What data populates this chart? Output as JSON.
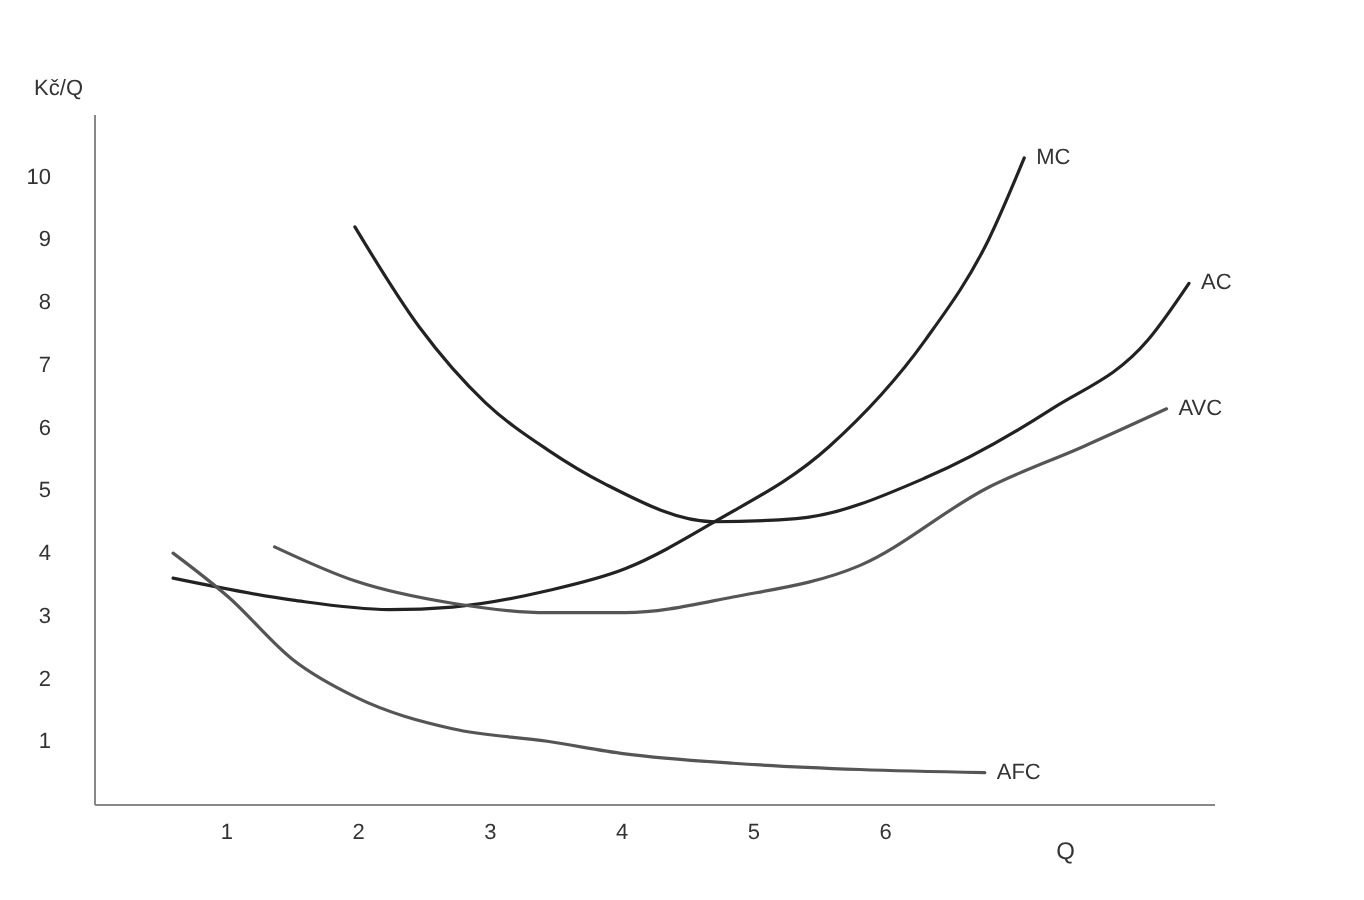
{
  "chart_data": {
    "type": "line",
    "xlabel": "Q",
    "ylabel": "Kč/Q",
    "xlim": [
      0,
      8.5
    ],
    "ylim": [
      0,
      11
    ],
    "xticks": [
      1,
      2,
      3,
      4,
      5,
      6
    ],
    "yticks": [
      1,
      2,
      3,
      4,
      5,
      6,
      7,
      8,
      9,
      10
    ],
    "series": [
      {
        "name": "MC",
        "color": "#222222",
        "x": [
          0.6,
          1.51,
          2.24,
          2.72,
          3.44,
          4.03,
          4.71,
          5.58,
          6.31,
          6.79,
          7.06
        ],
        "values": [
          3.6,
          3.25,
          3.1,
          3.14,
          3.4,
          3.75,
          4.5,
          5.7,
          7.4,
          9.0,
          10.3
        ]
      },
      {
        "name": "AC",
        "color": "#222222",
        "x": [
          1.98,
          2.47,
          2.97,
          3.44,
          3.88,
          4.71,
          5.33,
          6.31,
          7.27,
          8.0,
          8.31
        ],
        "values": [
          9.2,
          7.6,
          6.4,
          5.65,
          5.1,
          4.5,
          4.55,
          5.2,
          6.3,
          7.4,
          8.3
        ]
      },
      {
        "name": "AVC",
        "color": "#555555",
        "x": [
          1.37,
          1.99,
          2.72,
          3.44,
          4.03,
          4.85,
          5.81,
          6.79,
          7.51,
          8.14
        ],
        "values": [
          4.1,
          3.55,
          3.2,
          3.05,
          3.05,
          3.3,
          3.8,
          5.05,
          5.7,
          6.3
        ]
      },
      {
        "name": "AFC",
        "color": "#555555",
        "x": [
          0.6,
          1.02,
          1.51,
          1.99,
          2.72,
          3.44,
          4.03,
          4.85,
          5.81,
          6.76
        ],
        "values": [
          4.0,
          3.3,
          2.3,
          1.7,
          1.2,
          1.0,
          0.8,
          0.65,
          0.55,
          0.5
        ]
      }
    ]
  }
}
